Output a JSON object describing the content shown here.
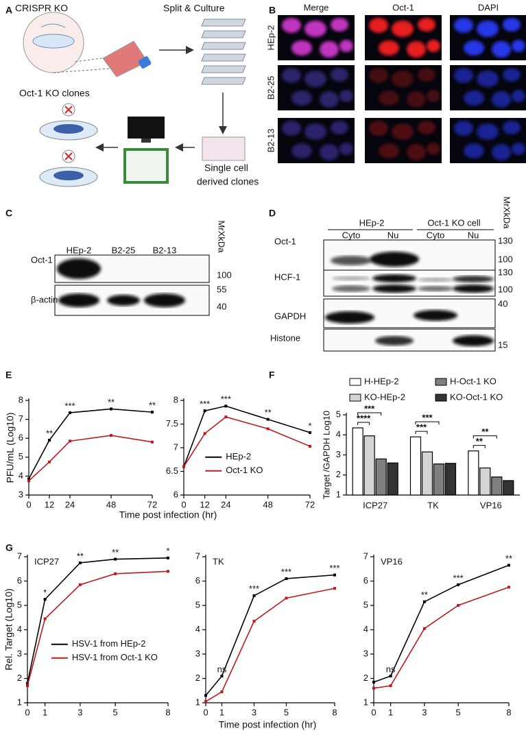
{
  "panel_a": {
    "label": "A",
    "crispr": "CRISPR KO",
    "split": "Split & Culture",
    "clones": "Oct-1 KO clones",
    "single_cell": "Single cell",
    "derived": "derived clones"
  },
  "panel_b": {
    "label": "B",
    "columns": [
      "Merge",
      "Oct-1",
      "DAPI"
    ],
    "rows": [
      "HEp-2",
      "B2-25",
      "B2-13"
    ]
  },
  "panel_c": {
    "label": "C",
    "lanes": [
      "HEp-2",
      "B2-25",
      "B2-13"
    ],
    "mw": "MrXkDa",
    "rows": [
      {
        "name": "Oct-1",
        "markers": [
          100
        ]
      },
      {
        "name": "β-actin",
        "markers": [
          55,
          40
        ]
      }
    ]
  },
  "panel_d": {
    "label": "D",
    "groups": [
      {
        "name": "HEp-2",
        "lanes": [
          "Cyto",
          "Nu"
        ]
      },
      {
        "name": "Oct-1 KO cell",
        "lanes": [
          "Cyto",
          "Nu"
        ]
      }
    ],
    "mw": "MrXkDa",
    "rows": [
      {
        "name": "Oct-1",
        "markers": [
          130,
          100
        ]
      },
      {
        "name": "HCF-1",
        "markers": [
          130,
          100
        ]
      },
      {
        "name": "GAPDH",
        "markers": [
          40
        ]
      },
      {
        "name": "Histone",
        "markers": [
          15
        ]
      }
    ]
  },
  "panel_e": {
    "label": "E",
    "ylabel": "PFU/mL (Log10)",
    "xlabel": "Time post infection (hr)"
  },
  "panel_f": {
    "label": "F"
  },
  "panel_g": {
    "label": "G",
    "ylabel": "Rel. Target (Log10)",
    "xlabel": "Time post infection (hr)"
  },
  "chart_data": [
    {
      "type": "line",
      "x": [
        0,
        12,
        24,
        48,
        72
      ],
      "xlim": [
        0,
        72
      ],
      "xticks": [
        0,
        12,
        24,
        48,
        72
      ],
      "ylim": [
        3,
        8
      ],
      "yticks": [
        3,
        4,
        5,
        6,
        7,
        8
      ],
      "series": [
        {
          "color": "#000000",
          "values": [
            3.85,
            5.9,
            7.35,
            7.55,
            7.38
          ],
          "annotations": [
            null,
            "**",
            "***",
            "**",
            "**"
          ]
        },
        {
          "color": "#c0181b",
          "values": [
            3.75,
            4.75,
            5.85,
            6.15,
            5.8
          ]
        }
      ]
    },
    {
      "type": "line",
      "x": [
        0,
        12,
        24,
        48,
        72
      ],
      "xlim": [
        0,
        72
      ],
      "xticks": [
        0,
        12,
        24,
        48,
        72
      ],
      "ylim": [
        6,
        8
      ],
      "yticks": [
        6,
        6.5,
        7,
        7.5,
        8
      ],
      "legend": "lower center",
      "series": [
        {
          "name": "HEp-2",
          "color": "#000000",
          "values": [
            6.6,
            7.78,
            7.88,
            7.6,
            7.32
          ],
          "annotations": [
            null,
            "***",
            "***",
            "**",
            "*"
          ]
        },
        {
          "name": "Oct-1 KO",
          "color": "#c0181b",
          "values": [
            6.6,
            7.3,
            7.65,
            7.4,
            7.03
          ]
        }
      ]
    },
    {
      "type": "bar",
      "categories": [
        "ICP27",
        "TK",
        "VP16"
      ],
      "ylim": [
        1,
        5
      ],
      "yticks": [
        1,
        2,
        3,
        4,
        5
      ],
      "ylabel": "Target /GAPDH Log10",
      "series": [
        {
          "name": "H-HEp-2",
          "color": "#ffffff",
          "values": [
            4.35,
            3.9,
            3.2
          ]
        },
        {
          "name": "KO-HEp-2",
          "color": "#d4d4d4",
          "values": [
            3.95,
            3.15,
            2.35
          ],
          "significance": [
            "****",
            "***",
            "**"
          ]
        },
        {
          "name": "H-Oct-1 KO",
          "color": "#7f7f7f",
          "values": [
            2.8,
            2.55,
            1.9
          ],
          "significance": [
            "***",
            "***",
            "**"
          ]
        },
        {
          "name": "KO-Oct-1 KO",
          "color": "#333333",
          "values": [
            2.6,
            2.58,
            1.72
          ]
        }
      ]
    },
    {
      "type": "line",
      "title": "ICP27",
      "x": [
        0,
        1,
        3,
        5,
        8
      ],
      "xlim": [
        0,
        8
      ],
      "xticks": [
        0,
        1,
        3,
        5,
        8
      ],
      "ylim": [
        1,
        7
      ],
      "yticks": [
        1,
        2,
        3,
        4,
        5,
        6,
        7
      ],
      "legend": "lower center",
      "series": [
        {
          "name": "HSV-1 from HEp-2",
          "color": "#000000",
          "values": [
            1.8,
            5.25,
            6.75,
            6.9,
            6.95
          ],
          "annotations": [
            null,
            "*",
            "**",
            "**",
            "*"
          ]
        },
        {
          "name": "HSV-1 from Oct-1 KO",
          "color": "#c0181b",
          "values": [
            1.7,
            4.45,
            5.85,
            6.3,
            6.4
          ]
        }
      ]
    },
    {
      "type": "line",
      "title": "TK",
      "x": [
        0,
        1,
        3,
        5,
        8
      ],
      "xlim": [
        0,
        8
      ],
      "xticks": [
        0,
        1,
        3,
        5,
        8
      ],
      "ylim": [
        1,
        7
      ],
      "yticks": [
        1,
        2,
        3,
        4,
        5,
        6,
        7
      ],
      "series": [
        {
          "color": "#000000",
          "values": [
            1.3,
            2.1,
            5.4,
            6.1,
            6.25
          ],
          "annotations": [
            null,
            "ns",
            "***",
            "***",
            "***"
          ]
        },
        {
          "color": "#c0181b",
          "values": [
            1.05,
            1.45,
            4.35,
            5.3,
            5.7
          ]
        }
      ]
    },
    {
      "type": "line",
      "title": "VP16",
      "x": [
        0,
        1,
        3,
        5,
        8
      ],
      "xlim": [
        0,
        8
      ],
      "xticks": [
        0,
        1,
        3,
        5,
        8
      ],
      "ylim": [
        1,
        7
      ],
      "yticks": [
        1,
        2,
        3,
        4,
        5,
        6,
        7
      ],
      "series": [
        {
          "color": "#000000",
          "values": [
            1.85,
            2.1,
            5.15,
            5.85,
            6.65
          ],
          "annotations": [
            null,
            "ns",
            "**",
            "***",
            "**"
          ]
        },
        {
          "color": "#c0181b",
          "values": [
            1.6,
            1.7,
            4.05,
            5.0,
            5.75
          ]
        }
      ]
    }
  ]
}
